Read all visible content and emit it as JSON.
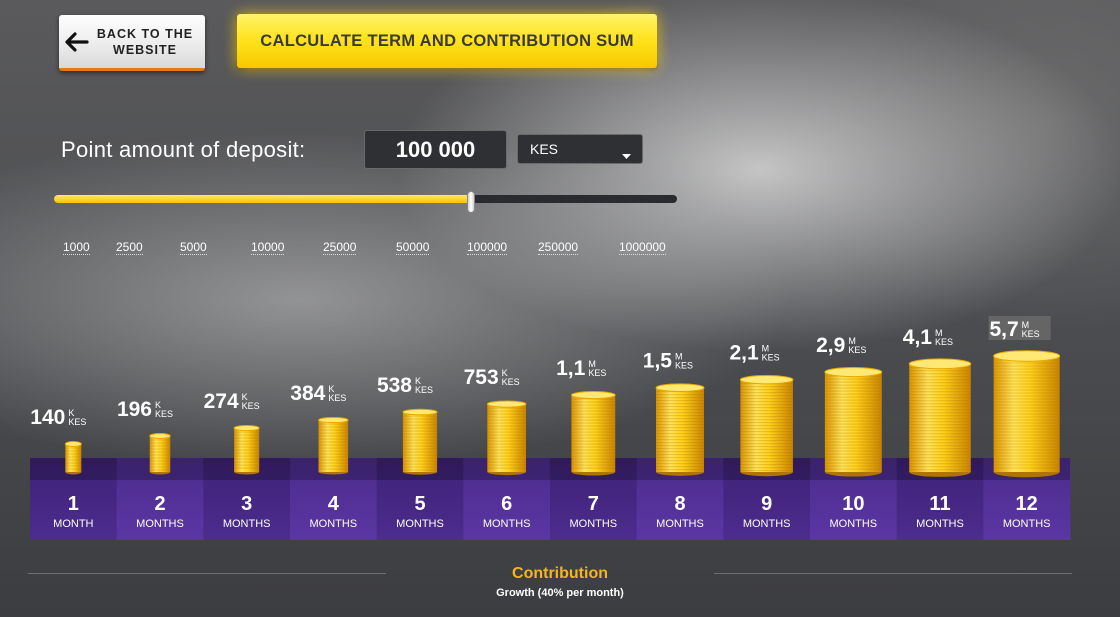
{
  "back_button": {
    "line1": "BACK TO THE",
    "line2": "WEBSITE",
    "icon": "arrow-left-icon"
  },
  "calculate_button": {
    "label": "CALCULATE TERM AND CONTRIBUTION SUM"
  },
  "deposit": {
    "label": "Point amount of deposit:",
    "value": "100 000",
    "currency": "KES",
    "slider_value_fraction": 0.67
  },
  "slider_ticks": [
    "1000",
    "2500",
    "5000",
    "10000",
    "25000",
    "50000",
    "100000",
    "250000",
    "1000000"
  ],
  "colors": {
    "accent_yellow": "#ffd400",
    "platform_purple": "#4a2a86",
    "platform_purple_alt": "#5a34a0",
    "contribution_title": "#f5b51e"
  },
  "chart_data": {
    "type": "bar",
    "categories": [
      "1",
      "2",
      "3",
      "4",
      "5",
      "6",
      "7",
      "8",
      "9",
      "10",
      "11",
      "12"
    ],
    "category_units": [
      "MONTH",
      "MONTHS",
      "MONTHS",
      "MONTHS",
      "MONTHS",
      "MONTHS",
      "MONTHS",
      "MONTHS",
      "MONTHS",
      "MONTHS",
      "MONTHS",
      "MONTHS"
    ],
    "values": [
      140000,
      196000,
      274000,
      384000,
      538000,
      753000,
      1100000,
      1500000,
      2100000,
      2900000,
      4100000,
      5700000
    ],
    "labels": [
      {
        "main": "140",
        "scale": "K",
        "currency": "KES"
      },
      {
        "main": "196",
        "scale": "K",
        "currency": "KES"
      },
      {
        "main": "274",
        "scale": "K",
        "currency": "KES"
      },
      {
        "main": "384",
        "scale": "K",
        "currency": "KES"
      },
      {
        "main": "538",
        "scale": "K",
        "currency": "KES"
      },
      {
        "main": "753",
        "scale": "K",
        "currency": "KES"
      },
      {
        "main": "1,1",
        "scale": "M",
        "currency": "KES"
      },
      {
        "main": "1,5",
        "scale": "M",
        "currency": "KES"
      },
      {
        "main": "2,1",
        "scale": "M",
        "currency": "KES"
      },
      {
        "main": "2,9",
        "scale": "M",
        "currency": "KES"
      },
      {
        "main": "4,1",
        "scale": "M",
        "currency": "KES"
      },
      {
        "main": "5,7",
        "scale": "M",
        "currency": "KES"
      }
    ],
    "highlighted_index": 11
  },
  "contribution": {
    "title": "Contribution",
    "subtitle": "Growth (40% per month)"
  }
}
